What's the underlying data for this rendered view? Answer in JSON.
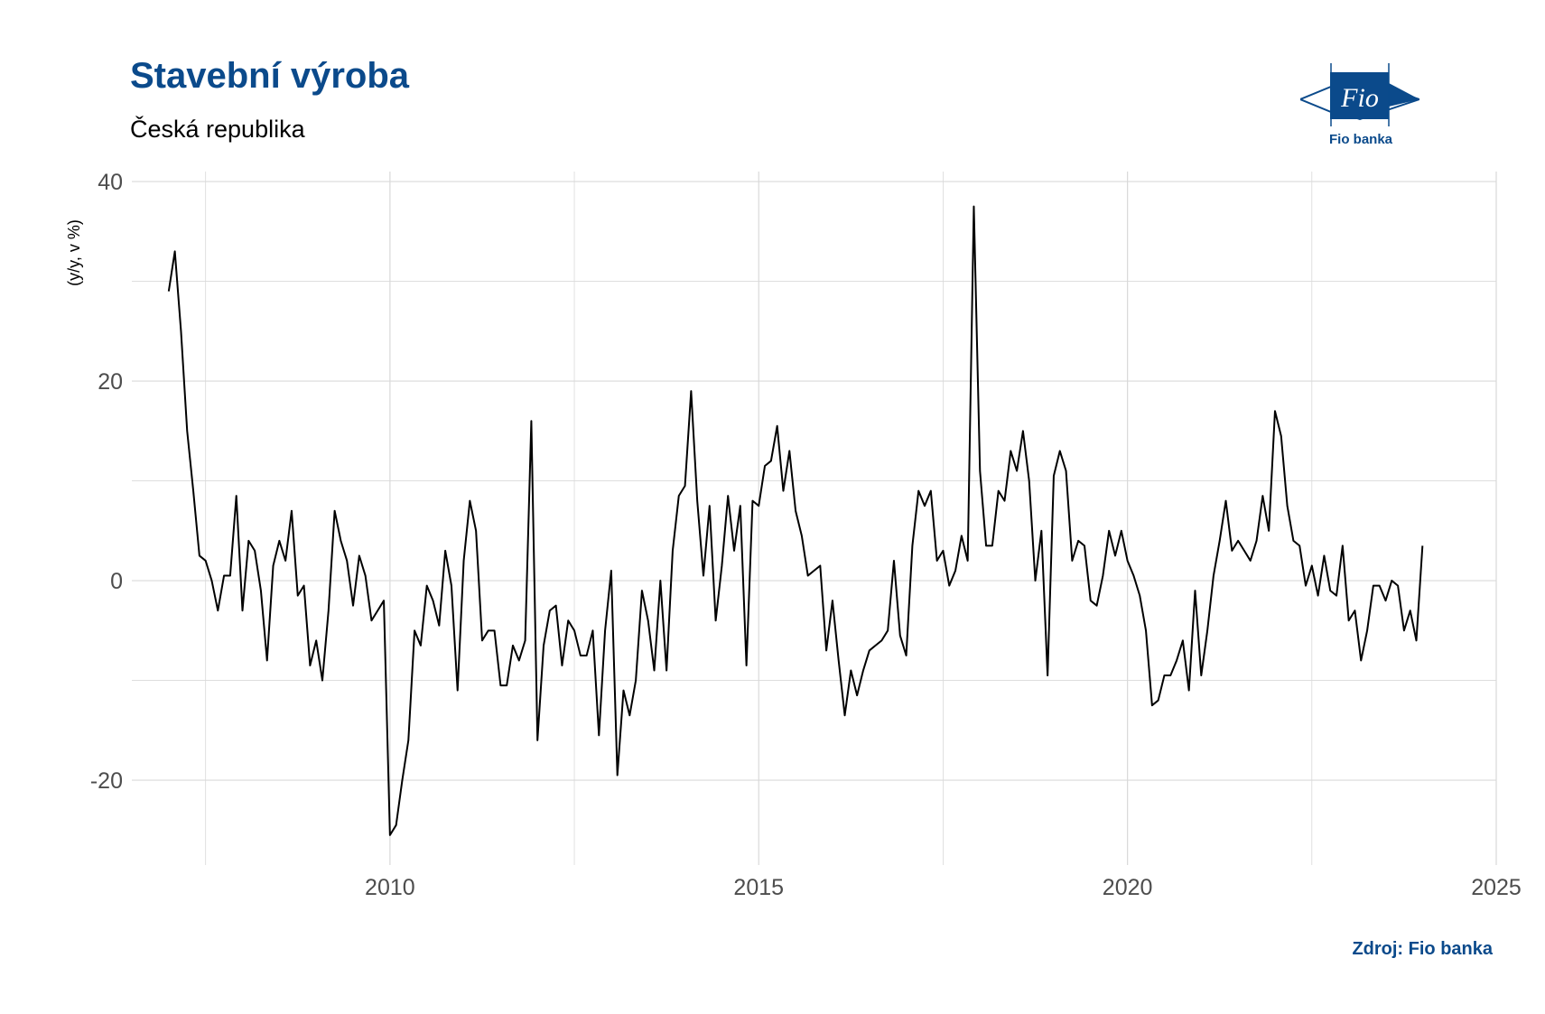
{
  "header": {
    "title": "Stavební výroba",
    "subtitle": "Česká republika"
  },
  "logo": {
    "mark_text": "Fio",
    "caption": "Fio banka",
    "color": "#0b4a8b"
  },
  "footer": {
    "source": "Zdroj: Fio banka"
  },
  "chart_data": {
    "type": "line",
    "title": "Stavební výroba",
    "subtitle": "Česká republika",
    "ylabel": "(y/y, v %)",
    "xlabel": "",
    "xlim": [
      2006.5,
      2025
    ],
    "ylim": [
      -28.5,
      41
    ],
    "x_ticks": [
      2010,
      2015,
      2020,
      2025
    ],
    "y_ticks": [
      -20,
      0,
      20,
      40
    ],
    "grid": true,
    "line_color": "#000000",
    "series": [
      {
        "x_start": 2007.0,
        "step": 0.08333333,
        "values": [
          29,
          33,
          25,
          15,
          9,
          2.5,
          2,
          0,
          -3,
          0.5,
          0.5,
          8.5,
          -3,
          4,
          3,
          -1,
          -8,
          1.5,
          4,
          2,
          7,
          -1.5,
          -0.5,
          -8.5,
          -6,
          -10,
          -3,
          7,
          4,
          2,
          -2.5,
          2.5,
          0.5,
          -4,
          -3,
          -2,
          -25.5,
          -24.5,
          -20,
          -16,
          -5,
          -6.5,
          -0.5,
          -2,
          -4.5,
          3,
          -0.5,
          -11,
          2,
          8,
          5,
          -6,
          -5,
          -5,
          -10.5,
          -10.5,
          -6.5,
          -8,
          -6,
          16,
          -16,
          -6.5,
          -3,
          -2.5,
          -8.5,
          -4,
          -5,
          -7.5,
          -7.5,
          -5,
          -15.5,
          -5,
          1,
          -19.5,
          -11,
          -13.5,
          -10,
          -1,
          -4,
          -9,
          0,
          -9,
          3,
          8.5,
          9.5,
          19,
          8,
          0.5,
          7.5,
          -4,
          1.5,
          8.5,
          3,
          7.5,
          -8.5,
          8,
          7.5,
          11.5,
          12,
          15.5,
          9,
          13,
          7,
          4.5,
          0.5,
          1,
          1.5,
          -7,
          -2,
          -8,
          -13.5,
          -9,
          -11.5,
          -9,
          -7,
          -6.5,
          -6,
          -5,
          2,
          -5.5,
          -7.5,
          3.5,
          9,
          7.5,
          9,
          2,
          3,
          -0.5,
          1,
          4.5,
          2,
          37.5,
          11,
          3.5,
          3.5,
          9,
          8,
          13,
          11,
          15,
          10,
          0,
          5,
          -9.5,
          10.5,
          13,
          11,
          2,
          4,
          3.5,
          -2,
          -2.5,
          0.5,
          5,
          2.5,
          5,
          2,
          0.5,
          -1.5,
          -5,
          -12.5,
          -12,
          -9.5,
          -9.5,
          -8,
          -6,
          -11,
          -1,
          -9.5,
          -5,
          0.5,
          4,
          8,
          3,
          4,
          3,
          2,
          4,
          8.5,
          5,
          17,
          14.5,
          7.5,
          4,
          3.5,
          -0.5,
          1.5,
          -1.5,
          2.5,
          -1,
          -1.5,
          3.5,
          -4,
          -3,
          -8,
          -5,
          -0.5,
          -0.5,
          -2,
          0,
          -0.5,
          -5,
          -3,
          -6,
          3.5
        ]
      }
    ]
  }
}
